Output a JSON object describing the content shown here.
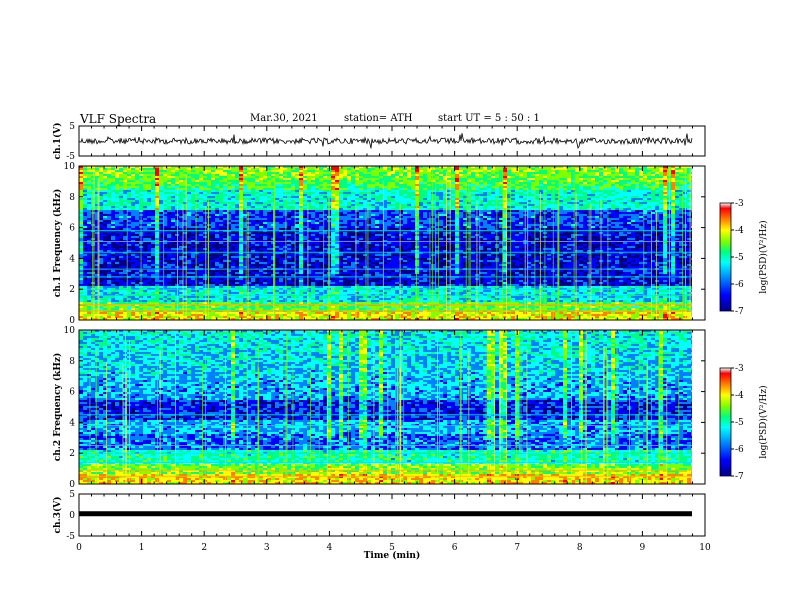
{
  "header": {
    "title": "VLF Spectra",
    "date": "Mar.30, 2021",
    "station": "station= ATH",
    "start": "start UT = 5 : 50 : 1"
  },
  "colors": {
    "palette": [
      "#000080",
      "#0000ff",
      "#0080ff",
      "#00ffff",
      "#00ff80",
      "#80ff00",
      "#ffff00",
      "#ff8000",
      "#ff0000",
      "#ffffff"
    ]
  },
  "chart_data": [
    {
      "type": "line",
      "panel": "ch1-waveform",
      "ylabel": "ch.1(V)",
      "ylim": [
        -5,
        5
      ],
      "yticks": [
        "5",
        "-5"
      ],
      "xlim": [
        0,
        10
      ],
      "description_values": {
        "mean": 0,
        "amplitude": 1.5
      }
    },
    {
      "type": "heatmap",
      "panel": "ch1-spectrogram",
      "ylabel": "ch.1 Frequency (kHz)",
      "ylim": [
        0,
        10
      ],
      "yticks": [
        "0",
        "2",
        "4",
        "6",
        "8",
        "10"
      ],
      "xlim": [
        0,
        9.8
      ],
      "colorbar": {
        "label": "log(PSD)(V²/Hz)",
        "range": [
          -7,
          -3
        ],
        "ticks": [
          "-3",
          "-4",
          "-5",
          "-6",
          "-7"
        ]
      }
    },
    {
      "type": "heatmap",
      "panel": "ch2-spectrogram",
      "ylabel": "ch.2 Frequency (kHz)",
      "ylim": [
        0,
        10
      ],
      "yticks": [
        "0",
        "2",
        "4",
        "6",
        "8",
        "10"
      ],
      "xlim": [
        0,
        9.8
      ],
      "colorbar": {
        "label": "log(PSD)(V²/Hz)",
        "range": [
          -7,
          -3
        ],
        "ticks": [
          "-3",
          "-4",
          "-5",
          "-6",
          "-7"
        ]
      }
    },
    {
      "type": "line",
      "panel": "ch3-waveform",
      "ylabel": "ch.3(V)",
      "ylim": [
        -5,
        5
      ],
      "yticks": [
        "5",
        "0",
        "-5"
      ],
      "xlim": [
        0,
        10
      ]
    }
  ],
  "xaxis": {
    "label": "Time (min)",
    "ticks": [
      "0",
      "1",
      "2",
      "3",
      "4",
      "5",
      "6",
      "7",
      "8",
      "9",
      "10"
    ]
  }
}
